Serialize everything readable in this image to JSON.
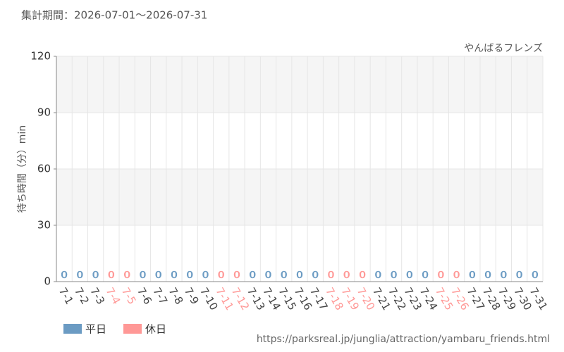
{
  "chart_data": {
    "type": "bar",
    "header": "集計期間：2026-07-01～2026-07-31",
    "subtitle": "やんばるフレンズ",
    "y_label": "待ち時間（分）min",
    "source": "https://parksreal.jp/junglia/attraction/yambaru_friends.html",
    "categories": [
      "7-1",
      "7-2",
      "7-3",
      "7-4",
      "7-5",
      "7-6",
      "7-7",
      "7-8",
      "7-9",
      "7-10",
      "7-11",
      "7-12",
      "7-13",
      "7-14",
      "7-15",
      "7-16",
      "7-17",
      "7-18",
      "7-19",
      "7-20",
      "7-21",
      "7-22",
      "7-23",
      "7-24",
      "7-25",
      "7-26",
      "7-27",
      "7-28",
      "7-29",
      "7-30",
      "7-31"
    ],
    "series": [
      {
        "name": "平日",
        "color": "#6b9bc3",
        "values": [
          0,
          0,
          0,
          null,
          null,
          0,
          0,
          0,
          0,
          0,
          null,
          null,
          0,
          0,
          0,
          0,
          0,
          null,
          null,
          null,
          0,
          0,
          0,
          0,
          null,
          null,
          0,
          0,
          0,
          0,
          0
        ]
      },
      {
        "name": "休日",
        "color": "#ff9896",
        "values": [
          null,
          null,
          null,
          0,
          0,
          null,
          null,
          null,
          null,
          null,
          0,
          0,
          null,
          null,
          null,
          null,
          null,
          0,
          0,
          0,
          null,
          null,
          null,
          null,
          0,
          0,
          null,
          null,
          null,
          null,
          null
        ]
      }
    ],
    "ylim": [
      0,
      120
    ],
    "yticks": [
      0,
      30,
      60,
      90,
      120
    ],
    "grid": true
  }
}
